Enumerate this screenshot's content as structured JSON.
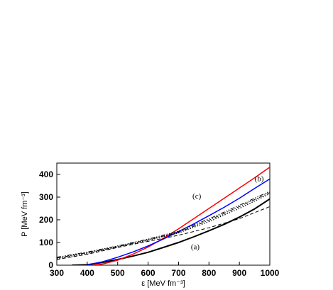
{
  "chart_data": {
    "type": "line",
    "xlabel": "ε [MeV fm⁻³]",
    "ylabel": "P [MeV fm⁻³]",
    "xlim": [
      300,
      1000
    ],
    "ylim": [
      0,
      450
    ],
    "x_ticks": [
      300,
      400,
      500,
      600,
      700,
      800,
      900,
      1000
    ],
    "y_ticks": [
      0,
      100,
      200,
      300,
      400
    ],
    "grid": false,
    "annotations": [
      {
        "text": "(a)",
        "x": 755,
        "y": 70
      },
      {
        "text": "(b)",
        "x": 965,
        "y": 370
      },
      {
        "text": "(c)",
        "x": 760,
        "y": 293
      }
    ],
    "series": [
      {
        "style": "solid",
        "color": "#000000",
        "width": 2,
        "x": [
          350,
          400,
          450,
          500,
          550,
          600,
          650,
          700,
          750,
          800,
          850,
          900,
          950,
          1000
        ],
        "y": [
          0,
          2,
          12,
          25,
          40,
          57,
          78,
          100,
          125,
          152,
          180,
          212,
          248,
          292
        ]
      },
      {
        "style": "solid",
        "color": "#ff0000",
        "width": 1.5,
        "x": [
          420,
          450,
          500,
          550,
          600,
          650,
          700,
          750,
          800,
          850,
          900,
          950,
          1000
        ],
        "y": [
          0,
          5,
          22,
          48,
          80,
          118,
          160,
          205,
          250,
          295,
          340,
          385,
          432
        ]
      },
      {
        "style": "solid",
        "color": "#0000ff",
        "width": 1.5,
        "x": [
          400,
          450,
          500,
          550,
          600,
          650,
          700,
          750,
          800,
          850,
          900,
          950,
          1000
        ],
        "y": [
          2,
          15,
          35,
          58,
          85,
          115,
          148,
          182,
          218,
          255,
          295,
          338,
          380
        ]
      },
      {
        "style": "dashed",
        "color": "#000000",
        "width": 1,
        "x": [
          300,
          400,
          500,
          600,
          700,
          800,
          900,
          1000
        ],
        "y": [
          25,
          48,
          78,
          105,
          132,
          165,
          205,
          258
        ]
      },
      {
        "style": "dashdot",
        "color": "#000000",
        "width": 1,
        "x": [
          300,
          400,
          500,
          600,
          700,
          800,
          900,
          1000
        ],
        "y": [
          32,
          55,
          82,
          112,
          145,
          198,
          258,
          320
        ]
      },
      {
        "style": "dotted",
        "color": "#000000",
        "width": 1.2,
        "x": [
          300,
          400,
          500,
          600,
          700,
          800,
          900,
          1000
        ],
        "y": [
          28,
          52,
          80,
          110,
          142,
          192,
          250,
          315
        ]
      },
      {
        "style": "dashdotdot",
        "color": "#000000",
        "width": 1,
        "x": [
          300,
          400,
          500,
          600,
          700,
          800,
          900,
          1000
        ],
        "y": [
          35,
          58,
          85,
          115,
          150,
          204,
          264,
          326
        ]
      }
    ]
  }
}
